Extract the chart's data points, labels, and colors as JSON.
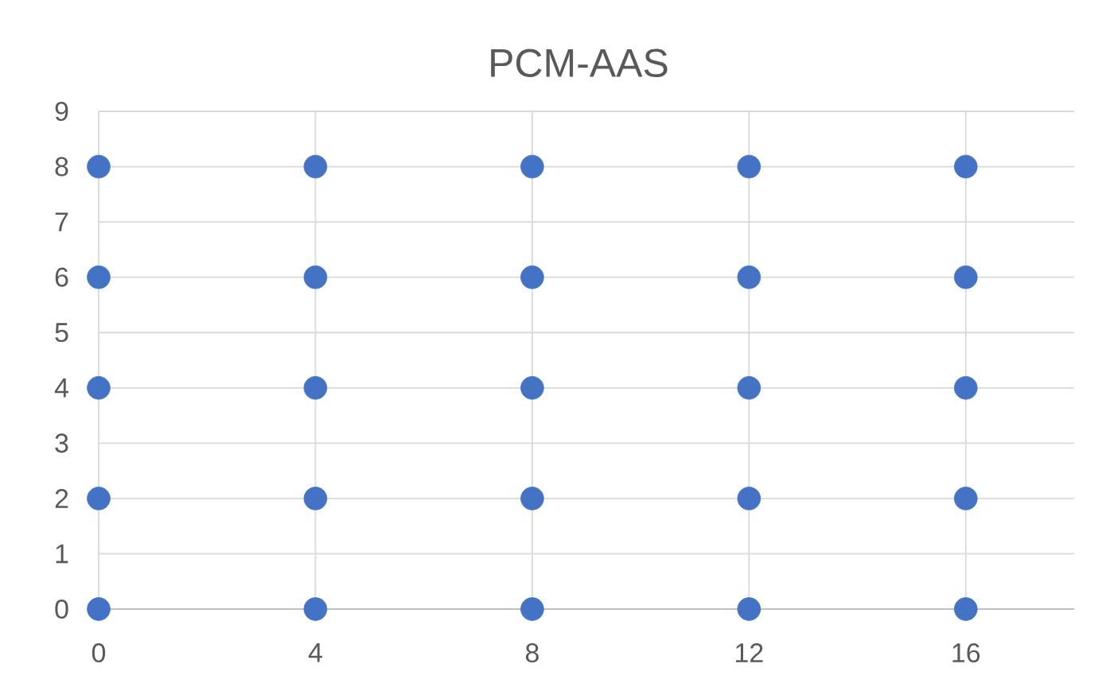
{
  "chart_data": {
    "type": "scatter",
    "title": "PCM-AAS",
    "x": [
      0,
      4,
      8,
      12,
      16,
      0,
      4,
      8,
      12,
      16,
      0,
      4,
      8,
      12,
      16,
      0,
      4,
      8,
      12,
      16,
      0,
      4,
      8,
      12,
      16
    ],
    "values": [
      0,
      0,
      0,
      0,
      0,
      2,
      2,
      2,
      2,
      2,
      4,
      4,
      4,
      4,
      4,
      6,
      6,
      6,
      6,
      6,
      8,
      8,
      8,
      8,
      8
    ],
    "color": "#4472c4",
    "marker": "circle",
    "xlim": [
      0,
      18
    ],
    "ylim": [
      0,
      9
    ],
    "xticks": [
      0,
      4,
      8,
      12,
      16
    ],
    "yticks": [
      0,
      1,
      2,
      3,
      4,
      5,
      6,
      7,
      8,
      9
    ],
    "grid": true
  }
}
